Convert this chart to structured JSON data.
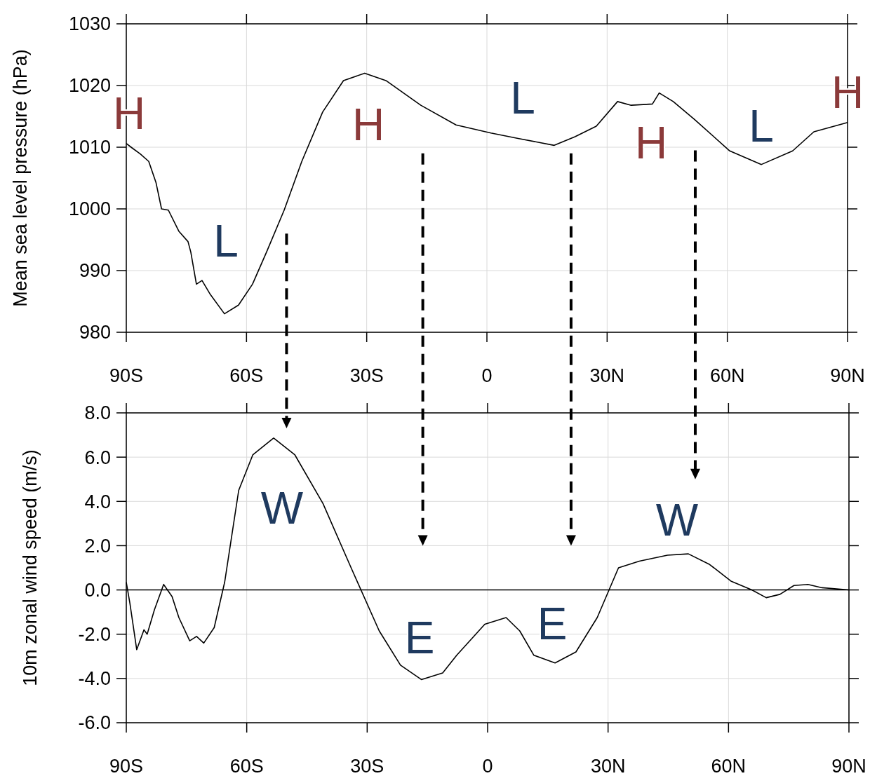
{
  "chart_data": [
    {
      "type": "line",
      "ylabel": "Mean sea level pressure (hPa)",
      "xlim": [
        -90,
        90
      ],
      "ylim": [
        980,
        1030
      ],
      "yticks": [
        980,
        990,
        1000,
        1010,
        1020,
        1030
      ],
      "grid": true,
      "xticks": [
        {
          "value": -90,
          "label": "90S"
        },
        {
          "value": -60,
          "label": "60S"
        },
        {
          "value": -30,
          "label": "30S"
        },
        {
          "value": 0,
          "label": "0"
        },
        {
          "value": 30,
          "label": "30N"
        },
        {
          "value": 60,
          "label": "60N"
        },
        {
          "value": 90,
          "label": "90N"
        }
      ],
      "series": [
        {
          "color": "#000000",
          "x": [
            -90,
            -88.8,
            -86.5,
            -84.4,
            -82.6,
            -81.2,
            -79.5,
            -76.9,
            -74.6,
            -73.9,
            -72.5,
            -71.1,
            -69,
            -65.5,
            -62,
            -58.5,
            -55,
            -50.6,
            -46.2,
            -41,
            -35.8,
            -30.5,
            -25.2,
            -16.5,
            -7.7,
            1,
            8,
            16.8,
            22,
            27.3,
            32.6,
            36,
            41.3,
            43,
            46.5,
            51.8,
            60.6,
            68.5,
            76.3,
            81.6,
            90
          ],
          "values": [
            1010.6,
            1010,
            1008.9,
            1007.7,
            1004.3,
            1000,
            999.8,
            996.4,
            994.7,
            993,
            987.8,
            988.4,
            986.1,
            983,
            984.4,
            987.8,
            993,
            999.8,
            1007.7,
            1015.7,
            1020.8,
            1022,
            1020.8,
            1016.8,
            1013.6,
            1012.3,
            1011.4,
            1010.3,
            1011.7,
            1013.4,
            1017.4,
            1016.8,
            1017,
            1018.8,
            1017.4,
            1014.5,
            1009.4,
            1007.2,
            1009.4,
            1012.5,
            1014
          ]
        }
      ],
      "annotations": [
        "H",
        "L",
        "H",
        "L",
        "H",
        "L",
        "H"
      ]
    },
    {
      "type": "line",
      "ylabel": "10m zonal wind speed (m/s)",
      "xlim": [
        -90,
        90
      ],
      "ylim": [
        -6,
        8
      ],
      "grid": true,
      "yticks": [
        {
          "value": -6,
          "label": "-6.0"
        },
        {
          "value": -4,
          "label": "-4.0"
        },
        {
          "value": -2,
          "label": "-2.0"
        },
        {
          "value": 0,
          "label": "0.0"
        },
        {
          "value": 2,
          "label": "2.0"
        },
        {
          "value": 4,
          "label": "4.0"
        },
        {
          "value": 6,
          "label": "6.0"
        },
        {
          "value": 8,
          "label": "8.0"
        }
      ],
      "xticks": [
        {
          "value": -90,
          "label": "90S"
        },
        {
          "value": -60,
          "label": "60S"
        },
        {
          "value": -30,
          "label": "30S"
        },
        {
          "value": 0,
          "label": "0"
        },
        {
          "value": 30,
          "label": "30N"
        },
        {
          "value": 60,
          "label": "60N"
        },
        {
          "value": 90,
          "label": "90N"
        }
      ],
      "ref_lines": [
        {
          "axis": "y",
          "value": 0,
          "color": "#000000"
        }
      ],
      "series": [
        {
          "color": "#000000",
          "x": [
            -90,
            -89.1,
            -87.4,
            -85.6,
            -84.8,
            -83,
            -80.7,
            -78.6,
            -76.9,
            -74.2,
            -72.5,
            -70.7,
            -68.1,
            -65.5,
            -62,
            -58.5,
            -53.3,
            -48,
            -41,
            -34,
            -27,
            -21.7,
            -16.5,
            -11.2,
            -7.7,
            -0.7,
            4.6,
            8,
            11.5,
            16.8,
            22,
            27.3,
            32.6,
            37.8,
            44.8,
            50,
            55.3,
            60.6,
            65.8,
            69.4,
            72.8,
            76.3,
            79.8,
            83.3,
            90
          ],
          "values": [
            0.35,
            -0.6,
            -2.7,
            -1.8,
            -2,
            -0.9,
            0.25,
            -0.3,
            -1.25,
            -2.3,
            -2.1,
            -2.4,
            -1.7,
            0.35,
            4.5,
            6.1,
            6.86,
            6.1,
            3.9,
            1,
            -1.85,
            -3.4,
            -4.05,
            -3.75,
            -2.95,
            -1.55,
            -1.25,
            -1.85,
            -2.95,
            -3.3,
            -2.8,
            -1.25,
            1,
            1.3,
            1.57,
            1.63,
            1.15,
            0.4,
            0,
            -0.35,
            -0.2,
            0.2,
            0.25,
            0.1,
            0
          ]
        }
      ],
      "annotations": [
        "W",
        "E",
        "E",
        "W"
      ]
    }
  ]
}
